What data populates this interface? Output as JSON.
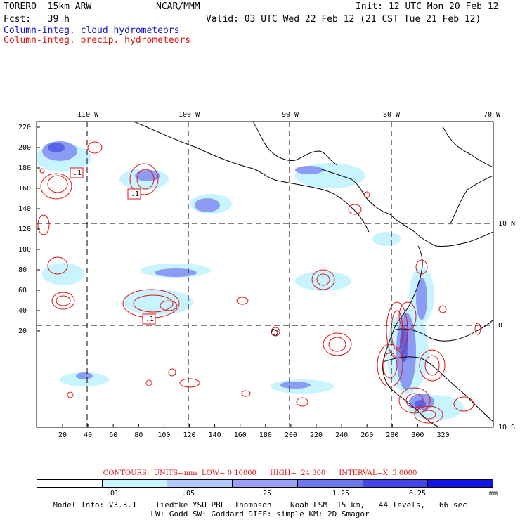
{
  "header": {
    "model": "TORERO  15km ARW",
    "org": "NCAR/MMM",
    "init": "Init: 12 UTC Mon 20 Feb 12",
    "fcst": "Fcst:   39 h",
    "valid": "Valid: 03 UTC Wed 22 Feb 12 (21 CST Tue 21 Feb 12)",
    "line_cloud": "Column-integ. cloud hydrometeors",
    "line_precip": "Column-integ. precip. hydrometeors"
  },
  "map": {
    "lon_labels": [
      "110 W",
      "100 W",
      "90 W",
      "80 W",
      "70 W"
    ],
    "lat_labels": [
      "10 N",
      "0",
      "10 S"
    ],
    "y_ticks": [
      "220",
      "200",
      "180",
      "160",
      "140",
      "120",
      "100",
      "80",
      "60",
      "40",
      "20"
    ],
    "x_ticks": [
      "20",
      "40",
      "60",
      "80",
      "100",
      "120",
      "140",
      "160",
      "180",
      "200",
      "220",
      "240",
      "260",
      "280",
      "300",
      "320"
    ],
    "box_labels": [
      ".1",
      ".1",
      ".1"
    ],
    "colors": {
      "cloud_light": "#c8f4ff",
      "cloud_mid": "#8c9cf5",
      "cloud_dark": "#5a64e6",
      "precip": "#e01414",
      "grid": "#000000"
    }
  },
  "contours_text": "CONTOURS:  UNITS=mm  LOW= 0.10000      HIGH=  24.300      INTERVAL=X  3.0000",
  "colorbar": {
    "labels": [
      ".01",
      ".05",
      ".25",
      "1.25",
      "6.25"
    ],
    "unit": "mm",
    "colors": [
      "#ffffff",
      "#c8f4ff",
      "#b4c8ff",
      "#9aa0f5",
      "#6e78ec",
      "#4646e8",
      "#1414e6"
    ]
  },
  "footer": {
    "line1": "Model Info: V3.3.1    Tiedtke YSU PBL  Thompson    Noah LSM  15 km,   44 levels,   66 sec",
    "line2": "LW: Godd SW: Goddard DIFF: simple KM: 2D Smagor"
  }
}
